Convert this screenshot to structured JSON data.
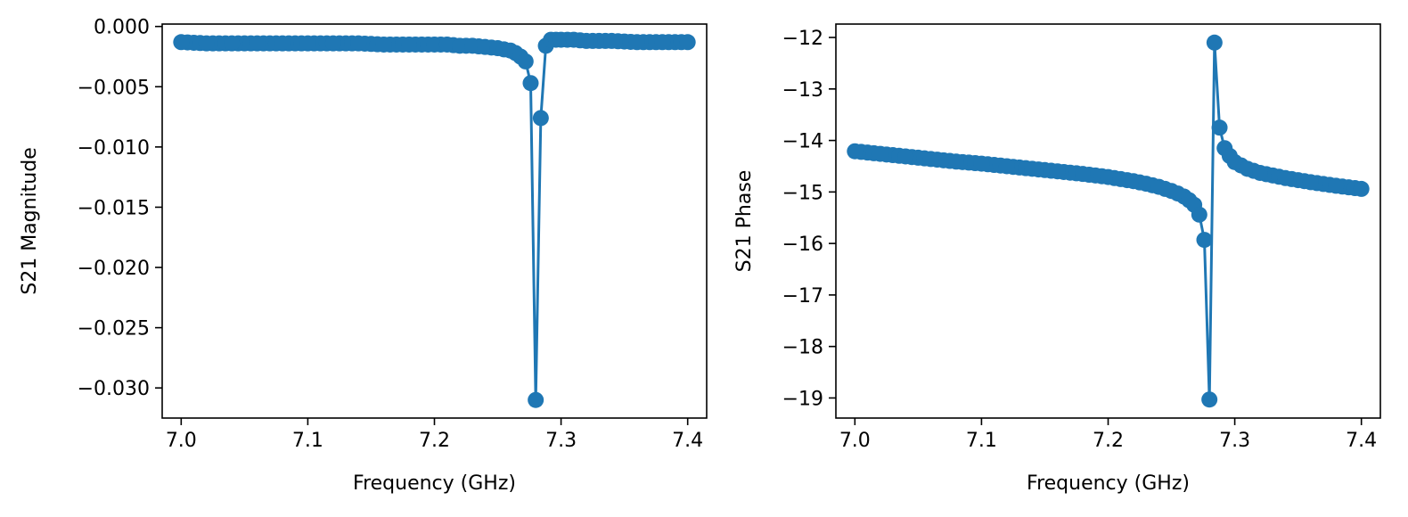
{
  "chart_data": [
    {
      "type": "line",
      "markers": true,
      "color": "#1f77b4",
      "title": "",
      "xlabel": "Frequency (GHz)",
      "ylabel": "S21 Magnitude",
      "xlim": [
        6.985,
        7.415
      ],
      "ylim": [
        -0.0325,
        0.0002
      ],
      "xticks": [
        7.0,
        7.1,
        7.2,
        7.3,
        7.4
      ],
      "xtick_labels": [
        "7.0",
        "7.1",
        "7.2",
        "7.3",
        "7.4"
      ],
      "yticks": [
        0.0,
        -0.005,
        -0.01,
        -0.015,
        -0.02,
        -0.025,
        -0.03
      ],
      "ytick_labels": [
        "0.000",
        "−0.005",
        "−0.010",
        "−0.015",
        "−0.020",
        "−0.025",
        "−0.030"
      ],
      "grid": false,
      "x": [
        7.0,
        7.02,
        7.04,
        7.06,
        7.08,
        7.1,
        7.12,
        7.14,
        7.16,
        7.18,
        7.2,
        7.21,
        7.22,
        7.23,
        7.24,
        7.25,
        7.255,
        7.26,
        7.264,
        7.268,
        7.272,
        7.276,
        7.28,
        7.284,
        7.288,
        7.292,
        7.296,
        7.3,
        7.31,
        7.32,
        7.34,
        7.36,
        7.38,
        7.4
      ],
      "y": [
        -0.0013,
        -0.0014,
        -0.0014,
        -0.0014,
        -0.0014,
        -0.0014,
        -0.0014,
        -0.0014,
        -0.0015,
        -0.0015,
        -0.0015,
        -0.0015,
        -0.0016,
        -0.0016,
        -0.0017,
        -0.0018,
        -0.0019,
        -0.002,
        -0.0022,
        -0.0025,
        -0.0029,
        -0.0047,
        -0.031,
        -0.0076,
        -0.0016,
        -0.0011,
        -0.0011,
        -0.0011,
        -0.0011,
        -0.0012,
        -0.0012,
        -0.0013,
        -0.0013,
        -0.0013
      ]
    },
    {
      "type": "line",
      "markers": true,
      "color": "#1f77b4",
      "title": "",
      "xlabel": "Frequency (GHz)",
      "ylabel": "S21 Phase",
      "xlim": [
        6.985,
        7.415
      ],
      "ylim": [
        -19.39,
        -11.74
      ],
      "xticks": [
        7.0,
        7.1,
        7.2,
        7.3,
        7.4
      ],
      "xtick_labels": [
        "7.0",
        "7.1",
        "7.2",
        "7.3",
        "7.4"
      ],
      "yticks": [
        -12,
        -13,
        -14,
        -15,
        -16,
        -17,
        -18,
        -19
      ],
      "ytick_labels": [
        "−12",
        "−13",
        "−14",
        "−15",
        "−16",
        "−17",
        "−18",
        "−19"
      ],
      "grid": false,
      "x": [
        7.0,
        7.02,
        7.04,
        7.06,
        7.08,
        7.1,
        7.12,
        7.14,
        7.16,
        7.18,
        7.2,
        7.21,
        7.22,
        7.23,
        7.24,
        7.25,
        7.255,
        7.26,
        7.264,
        7.268,
        7.272,
        7.276,
        7.28,
        7.284,
        7.288,
        7.292,
        7.296,
        7.3,
        7.31,
        7.32,
        7.34,
        7.36,
        7.38,
        7.4
      ],
      "y": [
        -14.21,
        -14.26,
        -14.31,
        -14.36,
        -14.41,
        -14.45,
        -14.5,
        -14.55,
        -14.6,
        -14.65,
        -14.71,
        -14.75,
        -14.79,
        -14.84,
        -14.9,
        -14.98,
        -15.03,
        -15.09,
        -15.16,
        -15.25,
        -15.44,
        -15.93,
        -19.03,
        -12.1,
        -13.75,
        -14.15,
        -14.3,
        -14.42,
        -14.55,
        -14.63,
        -14.73,
        -14.81,
        -14.88,
        -14.94
      ]
    }
  ]
}
